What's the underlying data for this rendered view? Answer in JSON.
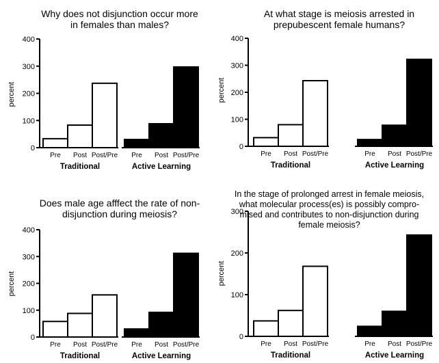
{
  "chart_data": [
    {
      "type": "bar",
      "title": "Why does not disjunction occur more in females than males?",
      "ylabel": "percent",
      "ylim": [
        0,
        400
      ],
      "yticks": [
        0,
        100,
        200,
        300,
        400
      ],
      "groups": [
        {
          "name": "Traditional",
          "categories": [
            "Pre",
            "Post",
            "Post/Pre"
          ],
          "values": [
            33,
            83,
            237
          ],
          "fill": "#ffffff"
        },
        {
          "name": "Active Learning",
          "categories": [
            "Pre",
            "Post",
            "Post/Pre"
          ],
          "values": [
            30,
            88,
            297
          ],
          "fill": "#000000"
        }
      ]
    },
    {
      "type": "bar",
      "title": "At what stage is meiosis arrested in prepubescent female humans?",
      "ylabel": "percent",
      "ylim": [
        0,
        400
      ],
      "yticks": [
        0,
        100,
        200,
        300,
        400
      ],
      "groups": [
        {
          "name": "Traditional",
          "categories": [
            "Pre",
            "Post",
            "Post/Pre"
          ],
          "values": [
            32,
            80,
            243
          ],
          "fill": "#ffffff"
        },
        {
          "name": "Active Learning",
          "categories": [
            "Pre",
            "Post",
            "Post/Pre"
          ],
          "values": [
            25,
            78,
            322
          ],
          "fill": "#000000"
        }
      ]
    },
    {
      "type": "bar",
      "title": "Does male age afffect the rate of non-disjunction during meiosis?",
      "ylabel": "percent",
      "ylim": [
        0,
        400
      ],
      "yticks": [
        0,
        100,
        200,
        300,
        400
      ],
      "groups": [
        {
          "name": "Traditional",
          "categories": [
            "Pre",
            "Post",
            "Post/Pre"
          ],
          "values": [
            58,
            88,
            157
          ],
          "fill": "#ffffff"
        },
        {
          "name": "Active Learning",
          "categories": [
            "Pre",
            "Post",
            "Post/Pre"
          ],
          "values": [
            30,
            92,
            312
          ],
          "fill": "#000000"
        }
      ]
    },
    {
      "type": "bar",
      "title": "In the stage of prolonged arrest in female meiosis, what molecular process(es) is possibly compro-mised and contributes to non-disjunction during female meiosis?",
      "title_lines": [
        "In the stage of prolonged arrest in female meiosis,",
        "what molecular process(es) is possibly compro-",
        "mised and contributes to non-disjunction during",
        "female meiosis?"
      ],
      "ylabel": "percent",
      "ylim": [
        0,
        300
      ],
      "yticks": [
        0,
        100,
        200,
        300
      ],
      "groups": [
        {
          "name": "Traditional",
          "categories": [
            "Pre",
            "Post",
            "Post/Pre"
          ],
          "values": [
            37,
            62,
            168
          ],
          "fill": "#ffffff"
        },
        {
          "name": "Active Learning",
          "categories": [
            "Pre",
            "Post",
            "Post/Pre"
          ],
          "values": [
            24,
            60,
            243
          ],
          "fill": "#000000"
        }
      ]
    }
  ]
}
